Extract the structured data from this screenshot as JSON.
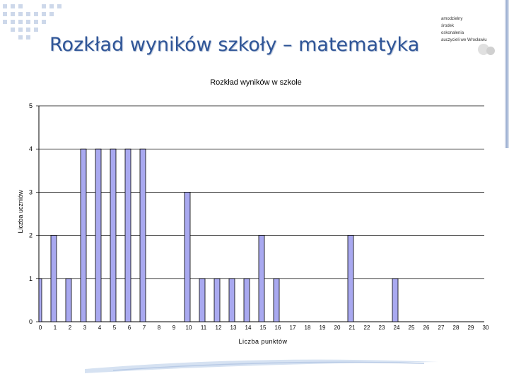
{
  "slide": {
    "title": "Rozkład wyników szkoły – matematyka"
  },
  "logo": {
    "lines": [
      "amodzielny",
      "środek",
      "oskonalenia",
      "auczycieli we Wrocławiu"
    ]
  },
  "colors": {
    "title": "#2f5597",
    "bar_fill": "#a9a9f0",
    "bar_stroke": "#000000",
    "grid": "#000000",
    "accent": "#4f8fc9"
  },
  "chart_data": {
    "type": "bar",
    "title": "Rozkład wyników w szkole",
    "xlabel": "Liczba punktów",
    "ylabel": "Liczba uczniów",
    "categories": [
      "0",
      "1",
      "2",
      "3",
      "4",
      "5",
      "6",
      "7",
      "8",
      "9",
      "10",
      "11",
      "12",
      "13",
      "14",
      "15",
      "16",
      "17",
      "18",
      "19",
      "20",
      "21",
      "22",
      "23",
      "24",
      "25",
      "26",
      "27",
      "28",
      "29",
      "30"
    ],
    "values": [
      1,
      2,
      1,
      4,
      4,
      4,
      4,
      4,
      0,
      0,
      3,
      1,
      1,
      1,
      1,
      2,
      1,
      0,
      0,
      0,
      0,
      2,
      0,
      0,
      1,
      0,
      0,
      0,
      0,
      0,
      0
    ],
    "ylim": [
      0,
      5
    ],
    "yticks": [
      0,
      1,
      2,
      3,
      4,
      5
    ],
    "grid": true,
    "legend": "none"
  }
}
